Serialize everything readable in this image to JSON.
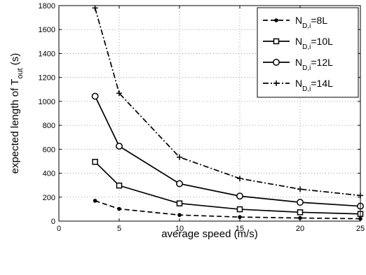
{
  "chart_data": {
    "type": "line",
    "xlabel": "average speed (m/s)",
    "ylabel_parts": [
      "expected length of T",
      "out",
      " (s)"
    ],
    "xlim": [
      0,
      25
    ],
    "ylim": [
      0,
      1800
    ],
    "xticks": [
      0,
      5,
      10,
      15,
      20,
      25
    ],
    "yticks": [
      0,
      200,
      400,
      600,
      800,
      1000,
      1200,
      1400,
      1600,
      1800
    ],
    "grid": true,
    "legend_position": "top-right",
    "x": [
      3,
      5,
      10,
      15,
      20,
      25
    ],
    "series": [
      {
        "name": "N_{D,i}=8L",
        "name_parts": [
          "N",
          "D,i",
          "=8L"
        ],
        "marker": "dot",
        "line": "dashed",
        "values": [
          170,
          102,
          51,
          34,
          26,
          20
        ]
      },
      {
        "name": "N_{D,i}=10L",
        "name_parts": [
          "N",
          "D,i",
          "=10L"
        ],
        "marker": "square",
        "line": "solid",
        "values": [
          495,
          297,
          148,
          99,
          74,
          60
        ]
      },
      {
        "name": "N_{D,i}=12L",
        "name_parts": [
          "N",
          "D,i",
          "=12L"
        ],
        "marker": "circle",
        "line": "solid",
        "values": [
          1043,
          626,
          313,
          209,
          157,
          125
        ]
      },
      {
        "name": "N_{D,i}=14L",
        "name_parts": [
          "N",
          "D,i",
          "=14L"
        ],
        "marker": "plus",
        "line": "dashdot",
        "values": [
          1780,
          1068,
          534,
          356,
          267,
          214
        ]
      }
    ]
  }
}
